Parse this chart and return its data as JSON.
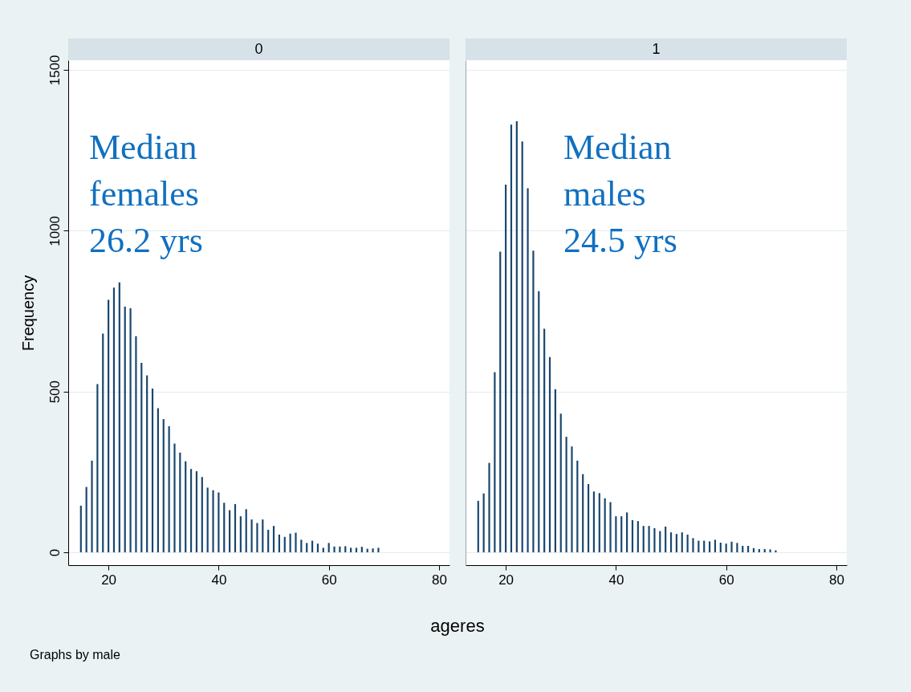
{
  "chart_data": [
    {
      "type": "bar",
      "title": "0",
      "ylabel": "Frequency",
      "xlabel": "ageres",
      "color": "#1a476f",
      "x": [
        15,
        16,
        17,
        18,
        19,
        20,
        21,
        22,
        23,
        24,
        25,
        26,
        27,
        28,
        29,
        30,
        31,
        32,
        33,
        34,
        35,
        36,
        37,
        38,
        39,
        40,
        41,
        42,
        43,
        44,
        45,
        46,
        47,
        48,
        49,
        50,
        51,
        52,
        53,
        54,
        55,
        56,
        57,
        58,
        59,
        60,
        61,
        62,
        63,
        64,
        65,
        66,
        67,
        68,
        69
      ],
      "values": [
        145,
        203,
        285,
        523,
        680,
        785,
        823,
        839,
        764,
        759,
        672,
        589,
        550,
        509,
        448,
        414,
        392,
        338,
        310,
        283,
        259,
        252,
        234,
        201,
        193,
        186,
        154,
        131,
        150,
        112,
        134,
        102,
        91,
        102,
        70,
        82,
        55,
        48,
        58,
        61,
        39,
        29,
        36,
        27,
        14,
        29,
        18,
        18,
        19,
        14,
        14,
        17,
        11,
        12,
        14
      ],
      "xlim": [
        12.7,
        81.9
      ],
      "xticks": [
        20,
        40,
        60,
        80
      ],
      "ylim": [
        -40,
        1530
      ],
      "yticks": [
        0,
        500,
        1000,
        1500
      ],
      "grid": "y",
      "annotations": [
        "Median\nfemales\n26.2 yrs",
        "Graphs by male"
      ]
    },
    {
      "type": "bar",
      "title": "1",
      "color": "#1a476f",
      "x": [
        15,
        16,
        17,
        18,
        19,
        20,
        21,
        22,
        23,
        24,
        25,
        26,
        27,
        28,
        29,
        30,
        31,
        32,
        33,
        34,
        35,
        36,
        37,
        38,
        39,
        40,
        41,
        42,
        43,
        44,
        45,
        46,
        47,
        48,
        49,
        50,
        51,
        52,
        53,
        54,
        55,
        56,
        57,
        58,
        59,
        60,
        61,
        62,
        63,
        64,
        65,
        66,
        67,
        68,
        69
      ],
      "values": [
        160,
        183,
        278,
        560,
        935,
        1143,
        1330,
        1340,
        1277,
        1132,
        938,
        812,
        695,
        607,
        507,
        431,
        359,
        329,
        285,
        243,
        212,
        189,
        184,
        168,
        156,
        112,
        112,
        124,
        100,
        97,
        82,
        82,
        75,
        66,
        80,
        62,
        57,
        62,
        55,
        44,
        36,
        36,
        34,
        39,
        30,
        27,
        33,
        29,
        20,
        20,
        13,
        10,
        10,
        9,
        6
      ],
      "xlim": [
        12.7,
        81.9
      ],
      "xticks": [
        20,
        40,
        60,
        80
      ],
      "ylim": [
        -40,
        1530
      ],
      "yticks": [
        0,
        500,
        1000,
        1500
      ],
      "grid": "y",
      "tick_labels": "x",
      "annotations": [
        "Median\nmales\n24.5 yrs"
      ]
    }
  ]
}
